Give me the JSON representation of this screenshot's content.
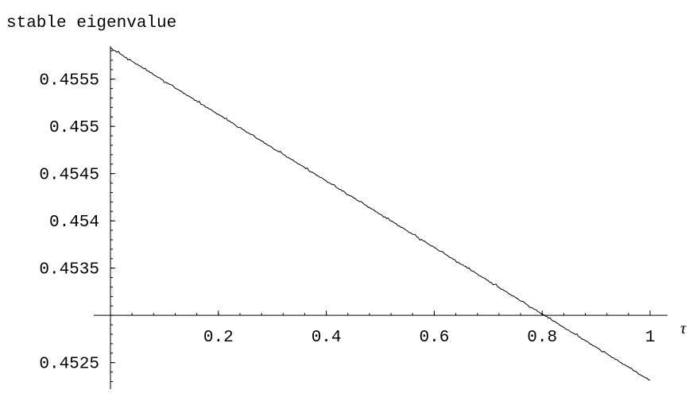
{
  "chart_data": {
    "type": "line",
    "title": "",
    "ylabel": "stable eigenvalue",
    "xlabel": "τ",
    "xlim": [
      0,
      1.0
    ],
    "ylim": [
      0.45222,
      0.45585
    ],
    "x_axis_crossing_y": 0.453,
    "x_ticks": [
      0.2,
      0.4,
      0.6,
      0.8,
      1.0
    ],
    "x_tick_labels": [
      "0.2",
      "0.4",
      "0.6",
      "0.8",
      "1"
    ],
    "y_ticks": [
      0.4525,
      0.4535,
      0.454,
      0.4545,
      0.455,
      0.4555
    ],
    "y_tick_labels": [
      "0.4525",
      "0.4535",
      "0.454",
      "0.4545",
      "0.455",
      "0.4555"
    ],
    "grid": false,
    "legend": "none",
    "series": [
      {
        "color": "#000000",
        "x": [
          0.0,
          0.1,
          0.2,
          0.3,
          0.4,
          0.5,
          0.6,
          0.7,
          0.8,
          0.9,
          1.0
        ],
        "y": [
          0.45583,
          0.455478,
          0.455126,
          0.454774,
          0.454422,
          0.45407,
          0.453718,
          0.453366,
          0.453014,
          0.452662,
          0.45231
        ]
      }
    ]
  }
}
